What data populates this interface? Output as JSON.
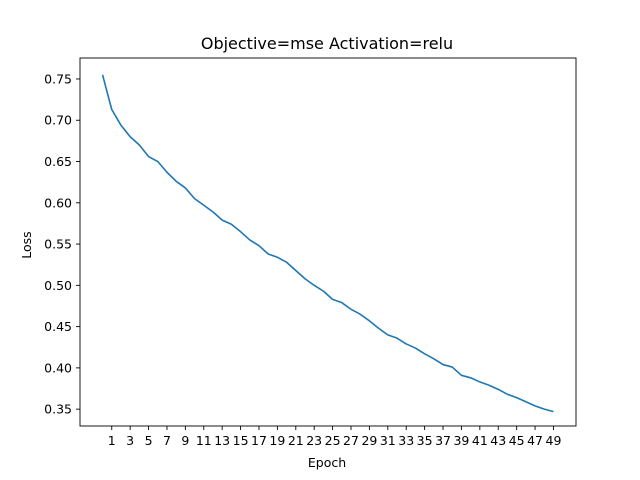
{
  "chart_data": {
    "type": "line",
    "title": "Objective=mse Activation=relu",
    "xlabel": "Epoch",
    "ylabel": "Loss",
    "x": [
      0,
      1,
      2,
      3,
      4,
      5,
      6,
      7,
      8,
      9,
      10,
      11,
      12,
      13,
      14,
      15,
      16,
      17,
      18,
      19,
      20,
      21,
      22,
      23,
      24,
      25,
      26,
      27,
      28,
      29,
      30,
      31,
      32,
      33,
      34,
      35,
      36,
      37,
      38,
      39,
      40,
      41,
      42,
      43,
      44,
      45,
      46,
      47,
      48,
      49
    ],
    "series": [
      {
        "color": "#1f77b4",
        "values": [
          0.755,
          0.713,
          0.694,
          0.68,
          0.67,
          0.656,
          0.65,
          0.637,
          0.626,
          0.618,
          0.605,
          0.597,
          0.589,
          0.579,
          0.574,
          0.565,
          0.555,
          0.548,
          0.538,
          0.534,
          0.528,
          0.518,
          0.508,
          0.5,
          0.493,
          0.483,
          0.479,
          0.471,
          0.465,
          0.457,
          0.448,
          0.44,
          0.436,
          0.429,
          0.424,
          0.417,
          0.411,
          0.404,
          0.401,
          0.391,
          0.388,
          0.383,
          0.379,
          0.374,
          0.368,
          0.364,
          0.359,
          0.354,
          0.35,
          0.347
        ]
      }
    ],
    "xticks": [
      1,
      3,
      5,
      7,
      9,
      11,
      13,
      15,
      17,
      19,
      21,
      23,
      25,
      27,
      29,
      31,
      33,
      35,
      37,
      39,
      41,
      43,
      45,
      47,
      49
    ],
    "yticks": [
      "0.35",
      "0.40",
      "0.45",
      "0.50",
      "0.55",
      "0.60",
      "0.65",
      "0.70",
      "0.75"
    ],
    "xlim": [
      -2.45,
      51.45
    ],
    "ylim": [
      0.3296,
      0.7754
    ],
    "grid": false
  }
}
